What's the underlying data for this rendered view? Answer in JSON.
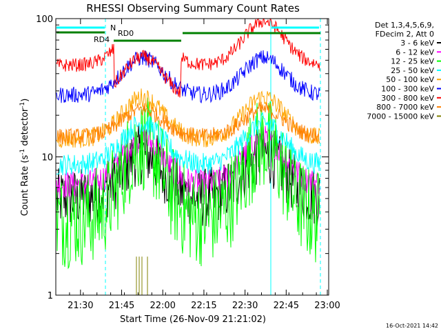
{
  "chart_data": {
    "type": "line",
    "title": "RHESSI Observing Summary Count Rates",
    "xlabel": "Start Time (26-Nov-09 21:21:02)",
    "ylabel_main": "Count Rate (s",
    "ylabel_sup": "-1",
    "ylabel_rest": " detector",
    "ylabel_sup2": "-1",
    "ylabel_end": ")",
    "y_scale": "log",
    "ylim": [
      1,
      100
    ],
    "x_ticks": [
      "21:30",
      "21:45",
      "22:00",
      "22:15",
      "22:30",
      "22:45",
      "23:00"
    ],
    "y_ticks": [
      "1",
      "10",
      "100"
    ],
    "legend_header": [
      "Det 1,3,4,5,6,9,",
      "FDecim 2, Att 0"
    ],
    "legend_position": "right",
    "series": [
      {
        "name": "3 - 6 keV",
        "color": "#000000",
        "base": 5.0,
        "peak": 10.5
      },
      {
        "name": "6 - 12 keV",
        "color": "#ff00ff",
        "base": 6.3,
        "peak": 13.5
      },
      {
        "name": "12 - 25 keV",
        "color": "#00ff00",
        "base": 3.5,
        "peak": 12.5
      },
      {
        "name": "25 - 50 keV",
        "color": "#00ffff",
        "base": 8.8,
        "peak": 17.5
      },
      {
        "name": "50 - 100 keV",
        "color": "#ffa500",
        "base": 13.5,
        "peak": 27
      },
      {
        "name": "100 - 300 keV",
        "color": "#0000ff",
        "base": 28,
        "peak": 52
      },
      {
        "name": "300 - 800 keV",
        "color": "#ff0000",
        "base": 46,
        "peak": 96
      },
      {
        "name": "800 - 7000 keV",
        "color": "#ff8000",
        "base": 14,
        "peak": 22
      },
      {
        "name": "7000 - 15000 keV",
        "color": "#808000",
        "base": 1,
        "peak": 1.9
      }
    ],
    "flags": [
      {
        "label": "N",
        "color": "#00ffff"
      },
      {
        "label": "RD0",
        "color": "#008000"
      },
      {
        "label": "RD4",
        "color": "#008000"
      }
    ],
    "timestamp": "16-Oct-2021 14:42"
  }
}
